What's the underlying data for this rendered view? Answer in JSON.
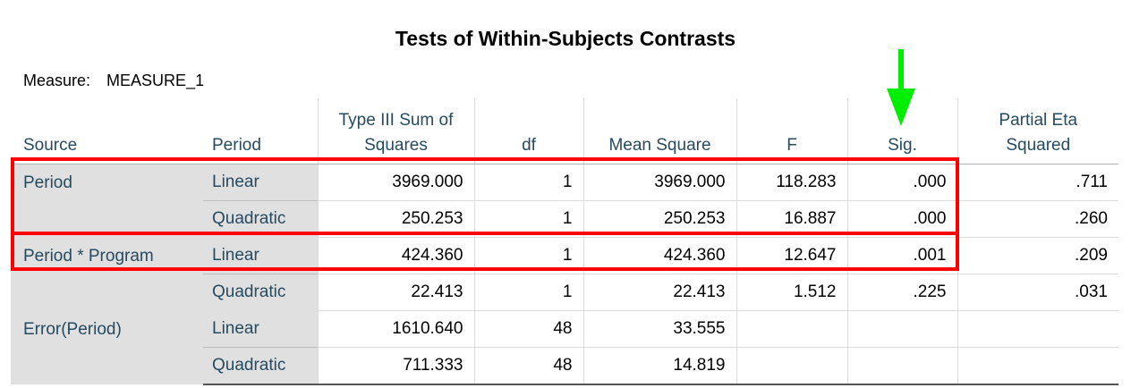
{
  "title": "Tests of Within-Subjects Contrasts",
  "measure": {
    "label": "Measure:",
    "value": "MEASURE_1"
  },
  "headers": [
    "Source",
    "Period",
    "Type III Sum of Squares",
    "df",
    "Mean Square",
    "F",
    "Sig.",
    "Partial Eta Squared"
  ],
  "rows": [
    {
      "source": "Period",
      "period": "Linear",
      "ss": "3969.000",
      "df": "1",
      "ms": "3969.000",
      "f": "118.283",
      "sig": ".000",
      "eta": ".711"
    },
    {
      "source": "",
      "period": "Quadratic",
      "ss": "250.253",
      "df": "1",
      "ms": "250.253",
      "f": "16.887",
      "sig": ".000",
      "eta": ".260"
    },
    {
      "source": "Period * Program",
      "period": "Linear",
      "ss": "424.360",
      "df": "1",
      "ms": "424.360",
      "f": "12.647",
      "sig": ".001",
      "eta": ".209"
    },
    {
      "source": "",
      "period": "Quadratic",
      "ss": "22.413",
      "df": "1",
      "ms": "22.413",
      "f": "1.512",
      "sig": ".225",
      "eta": ".031"
    },
    {
      "source": "Error(Period)",
      "period": "Linear",
      "ss": "1610.640",
      "df": "48",
      "ms": "33.555",
      "f": "",
      "sig": "",
      "eta": ""
    },
    {
      "source": "",
      "period": "Quadratic",
      "ss": "711.333",
      "df": "48",
      "ms": "14.819",
      "f": "",
      "sig": "",
      "eta": ""
    }
  ],
  "colors": {
    "highlight_box": "#ff0000",
    "arrow": "#00ee00",
    "label_text": "#264a60",
    "label_bg": "#e0e0e0"
  },
  "annotations": {
    "arrow_icon": "arrow-down-icon",
    "arrow_target": "Sig."
  }
}
